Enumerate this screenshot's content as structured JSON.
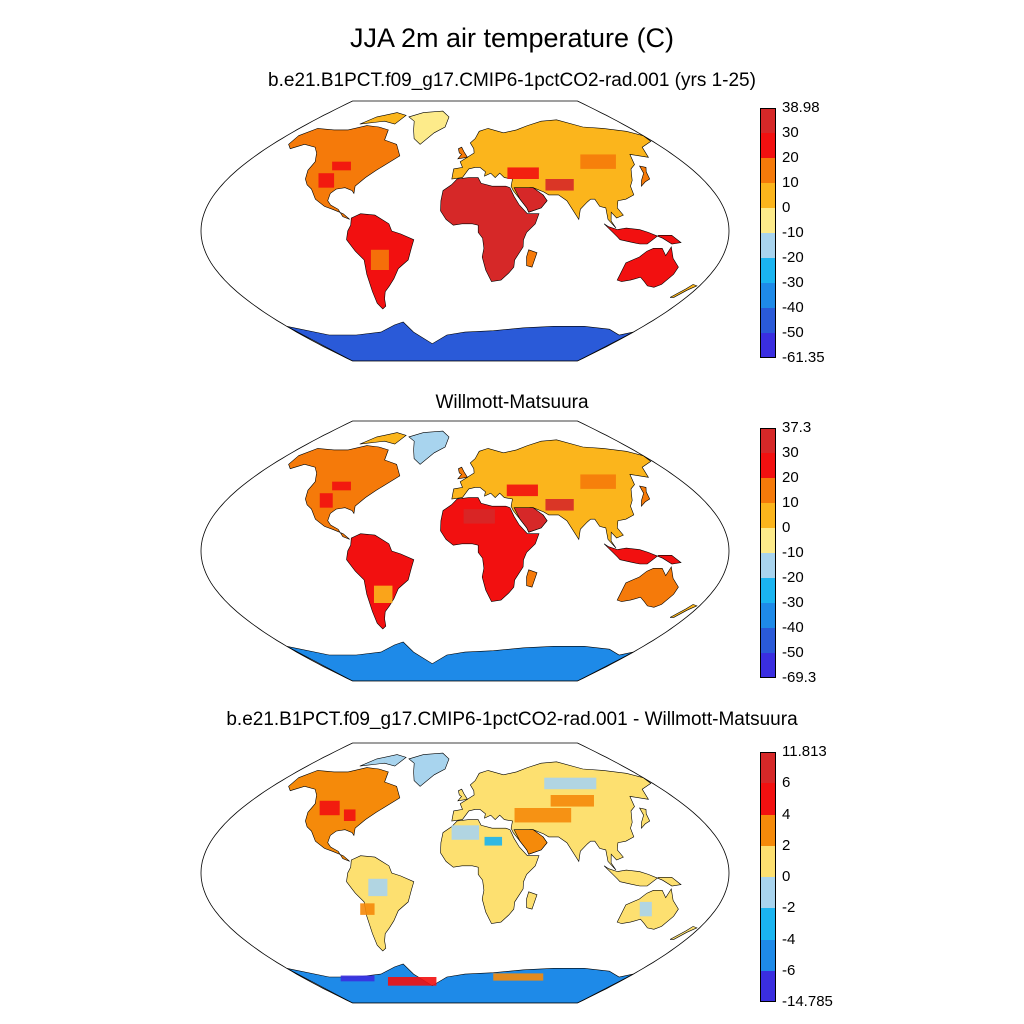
{
  "figure": {
    "title": "JJA 2m air temperature (C)"
  },
  "panels": [
    {
      "title": "b.e21.B1PCT.f09_g17.CMIP6-1pctCO2-rad.001 (yrs 1-25)",
      "kind": "absolute",
      "colorbar": {
        "labels": [
          "38.98",
          "30",
          "20",
          "10",
          "0",
          "-10",
          "-20",
          "-30",
          "-40",
          "-50",
          "-61.35"
        ],
        "colors": [
          "#d62828",
          "#f21010",
          "#f57a0a",
          "#fbb51c",
          "#fdeb8a",
          "#a8d4ee",
          "#1ab4f0",
          "#1e8ae8",
          "#2a5ad8",
          "#3a2ee0"
        ]
      }
    },
    {
      "title": "Willmott-Matsuura",
      "kind": "absolute",
      "colorbar": {
        "labels": [
          "37.3",
          "30",
          "20",
          "10",
          "0",
          "-10",
          "-20",
          "-30",
          "-40",
          "-50",
          "-69.3"
        ],
        "colors": [
          "#d62828",
          "#f21010",
          "#f57a0a",
          "#fbb51c",
          "#fdeb8a",
          "#a8d4ee",
          "#1ab4f0",
          "#1e8ae8",
          "#2a5ad8",
          "#3a2ee0"
        ]
      }
    },
    {
      "title": "b.e21.B1PCT.f09_g17.CMIP6-1pctCO2-rad.001 - Willmott-Matsuura",
      "kind": "difference",
      "colorbar": {
        "labels": [
          "11.813",
          "6",
          "4",
          "2",
          "0",
          "-2",
          "-4",
          "-6",
          "-14.785"
        ],
        "colors": [
          "#d62828",
          "#f21010",
          "#f58a0a",
          "#fde070",
          "#a8d4ee",
          "#1ab4f0",
          "#1e8ae8",
          "#3a2ee0"
        ]
      }
    }
  ]
}
